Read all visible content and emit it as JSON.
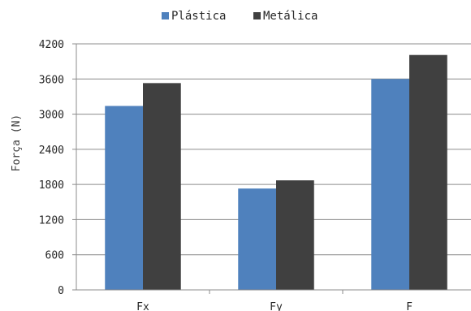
{
  "chart_data": {
    "type": "bar",
    "categories": [
      "Fx",
      "Fy",
      "F"
    ],
    "series": [
      {
        "name": "Plástica",
        "values": [
          3140,
          1730,
          3600
        ],
        "color": "#4f81bd"
      },
      {
        "name": "Metálica",
        "values": [
          3530,
          1870,
          4010
        ],
        "color": "#404040"
      }
    ],
    "title": "",
    "xlabel": "",
    "ylabel": "Força (N)",
    "ylim": [
      0,
      4200
    ],
    "yticks": [
      0,
      600,
      1200,
      1800,
      2400,
      3000,
      3600,
      4200
    ],
    "grid": true,
    "legend": "top"
  }
}
